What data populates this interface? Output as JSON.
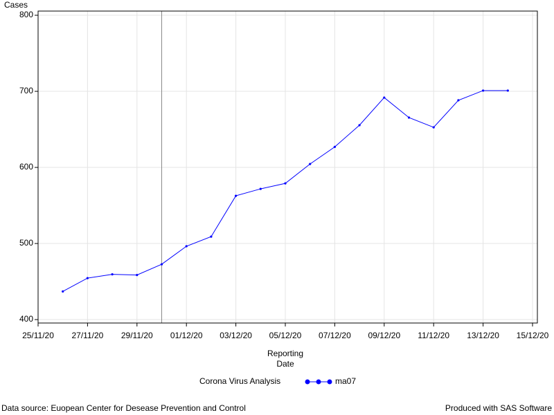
{
  "chart_data": {
    "type": "line",
    "y_label": "Cases",
    "x_label": "Reporting Date",
    "legend_title": "Corona Virus Analysis",
    "x": [
      "26/11/20",
      "27/11/20",
      "28/11/20",
      "29/11/20",
      "30/11/20",
      "01/12/20",
      "02/12/20",
      "03/12/20",
      "04/12/20",
      "05/12/20",
      "06/12/20",
      "07/12/20",
      "08/12/20",
      "09/12/20",
      "10/12/20",
      "11/12/20",
      "12/12/20",
      "13/12/20",
      "14/12/20"
    ],
    "series": [
      {
        "name": "ma07",
        "color": "#0000ff",
        "values": [
          437,
          454.5,
          459.5,
          458.6,
          472.7,
          496.4,
          509,
          562.7,
          571.8,
          579,
          604.5,
          627,
          655.5,
          691.8,
          665.5,
          652.7,
          688.2,
          701,
          701
        ]
      }
    ],
    "xlim": [
      "25/11/20",
      "15/12/20"
    ],
    "xticks": [
      "25/11/20",
      "27/11/20",
      "29/11/20",
      "01/12/20",
      "03/12/20",
      "05/12/20",
      "07/12/20",
      "09/12/20",
      "11/12/20",
      "13/12/20",
      "15/12/20"
    ],
    "ylim": [
      395.5,
      805.5
    ],
    "yticks": [
      400,
      500,
      600,
      700,
      800
    ],
    "grid": true,
    "reference_line_x": "30/11/20",
    "footnote_left": "Data source: Euopean Center for Desease Prevention and Control",
    "footnote_right": "Produced with SAS Software"
  }
}
